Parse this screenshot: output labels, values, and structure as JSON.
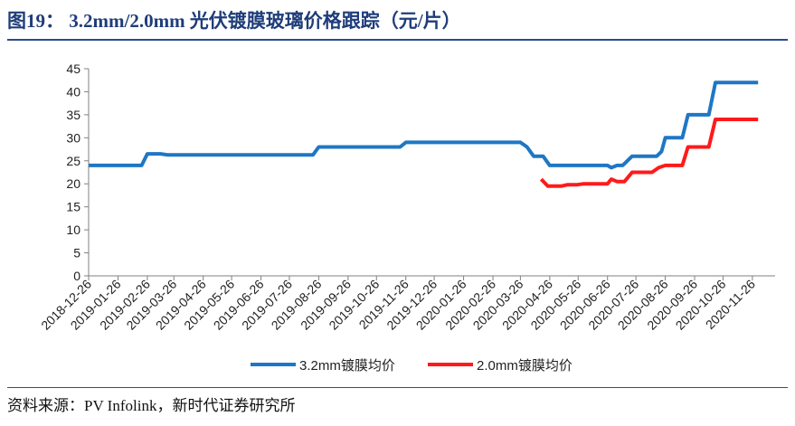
{
  "header": {
    "title": "图19：  3.2mm/2.0mm  光伏镀膜玻璃价格跟踪（元/片）"
  },
  "footer": {
    "source": "资料来源：PV Infolink，新时代证券研究所"
  },
  "chart_data": {
    "type": "line",
    "title": "",
    "xlabel": "",
    "ylabel": "",
    "ylim": [
      0,
      45
    ],
    "yticks": [
      0,
      5,
      10,
      15,
      20,
      25,
      30,
      35,
      40,
      45
    ],
    "xlim": [
      "2018-12-26",
      "2020-12-20"
    ],
    "xticks": [
      "2018-12-26",
      "2019-01-26",
      "2019-02-26",
      "2019-03-26",
      "2019-04-26",
      "2019-05-26",
      "2019-06-26",
      "2019-07-26",
      "2019-08-26",
      "2019-09-26",
      "2019-10-26",
      "2019-11-26",
      "2019-12-26",
      "2020-01-26",
      "2020-02-26",
      "2020-03-26",
      "2020-04-26",
      "2020-05-26",
      "2020-06-26",
      "2020-07-26",
      "2020-08-26",
      "2020-09-26",
      "2020-10-26",
      "2020-11-26"
    ],
    "grid": false,
    "legend_position": "bottom",
    "series": [
      {
        "name": "3.2mm镀膜均价",
        "color": "#1f77c4",
        "points": [
          [
            "2018-12-26",
            24
          ],
          [
            "2019-02-20",
            24
          ],
          [
            "2019-02-26",
            26.5
          ],
          [
            "2019-03-12",
            26.5
          ],
          [
            "2019-03-19",
            26.3
          ],
          [
            "2019-08-20",
            26.3
          ],
          [
            "2019-08-26",
            28
          ],
          [
            "2019-11-20",
            28
          ],
          [
            "2019-11-26",
            29
          ],
          [
            "2020-03-26",
            29
          ],
          [
            "2020-04-02",
            28
          ],
          [
            "2020-04-09",
            26
          ],
          [
            "2020-04-19",
            26
          ],
          [
            "2020-04-26",
            24
          ],
          [
            "2020-06-26",
            24
          ],
          [
            "2020-06-30",
            23.5
          ],
          [
            "2020-07-06",
            24
          ],
          [
            "2020-07-12",
            24
          ],
          [
            "2020-07-22",
            26
          ],
          [
            "2020-08-17",
            26
          ],
          [
            "2020-08-22",
            27
          ],
          [
            "2020-08-26",
            30
          ],
          [
            "2020-09-13",
            30
          ],
          [
            "2020-09-19",
            35
          ],
          [
            "2020-10-11",
            35
          ],
          [
            "2020-10-18",
            42
          ],
          [
            "2020-12-02",
            42
          ]
        ]
      },
      {
        "name": "2.0mm镀膜均价",
        "color": "#ff1a1a",
        "points": [
          [
            "2020-04-17",
            21
          ],
          [
            "2020-04-24",
            19.5
          ],
          [
            "2020-05-08",
            19.5
          ],
          [
            "2020-05-15",
            19.8
          ],
          [
            "2020-05-25",
            19.8
          ],
          [
            "2020-06-01",
            20
          ],
          [
            "2020-06-26",
            20
          ],
          [
            "2020-06-30",
            21
          ],
          [
            "2020-07-06",
            20.5
          ],
          [
            "2020-07-14",
            20.5
          ],
          [
            "2020-07-22",
            22.5
          ],
          [
            "2020-08-12",
            22.5
          ],
          [
            "2020-08-19",
            23.5
          ],
          [
            "2020-08-26",
            24
          ],
          [
            "2020-09-13",
            24
          ],
          [
            "2020-09-19",
            28
          ],
          [
            "2020-10-11",
            28
          ],
          [
            "2020-10-18",
            34
          ],
          [
            "2020-12-02",
            34
          ]
        ]
      }
    ]
  }
}
